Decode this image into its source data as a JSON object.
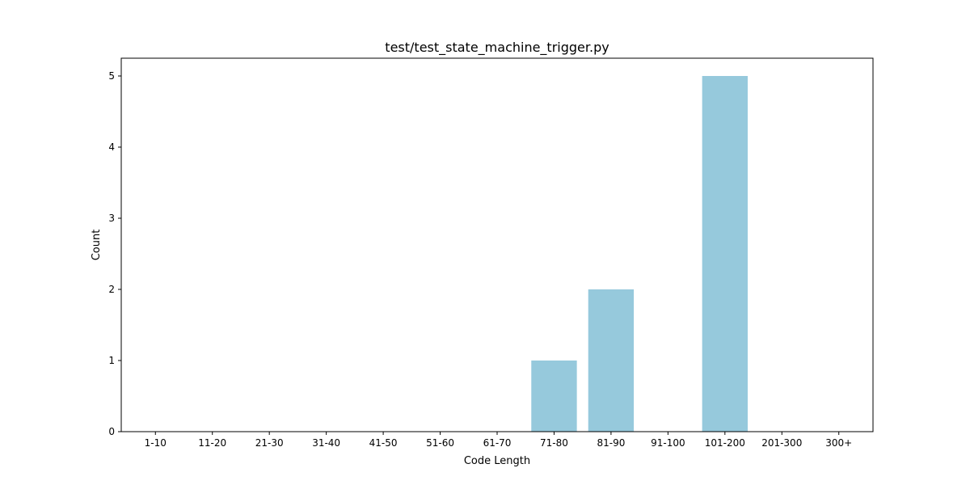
{
  "chart_data": {
    "type": "bar",
    "title": "test/test_state_machine_trigger.py",
    "xlabel": "Code Length",
    "ylabel": "Count",
    "categories": [
      "1-10",
      "11-20",
      "21-30",
      "31-40",
      "41-50",
      "51-60",
      "61-70",
      "71-80",
      "81-90",
      "91-100",
      "101-200",
      "201-300",
      "300+"
    ],
    "values": [
      0,
      0,
      0,
      0,
      0,
      0,
      0,
      1,
      2,
      0,
      5,
      0,
      0
    ],
    "ylim": [
      0,
      5.25
    ],
    "yticks": [
      0,
      1,
      2,
      3,
      4,
      5
    ],
    "grid": false,
    "legend": "none",
    "bar_color": "#96c9dc"
  }
}
